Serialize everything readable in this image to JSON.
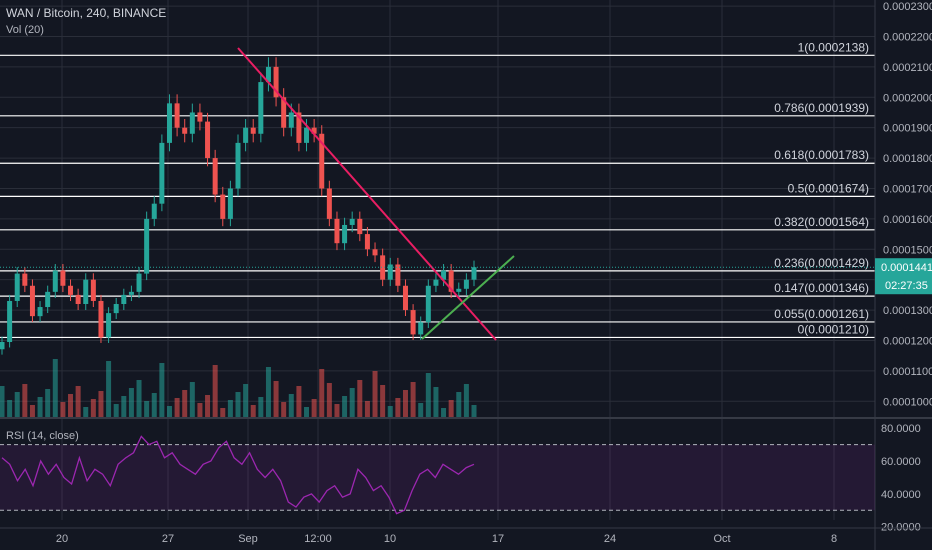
{
  "header": {
    "title": "WAN / Bitcoin, 240, BINANCE",
    "volume": "Vol (20)"
  },
  "rsi": {
    "label": "RSI (14, close)",
    "ticks": [
      "80.0000",
      "60.0000",
      "40.0000",
      "20.0000"
    ],
    "upper": 70,
    "lower": 30
  },
  "colors": {
    "bg": "#131722",
    "up": "#26a69a",
    "down": "#ef5350",
    "trend": "#e91e63",
    "support": "#4caf50",
    "fib": "#ffffff",
    "rsi": "#9c27b0",
    "last": "#26a69a"
  },
  "price_axis": {
    "ticks": [
      "0.0002300",
      "0.0002200",
      "0.0002100",
      "0.0002000",
      "0.0001900",
      "0.0001800",
      "0.0001700",
      "0.0001600",
      "0.0001500",
      "0.0001400",
      "0.0001300",
      "0.0001200",
      "0.0001100",
      "0.0001000"
    ]
  },
  "time_axis": {
    "labels": [
      "20",
      "27",
      "Sep",
      "12:00",
      "10",
      "17",
      "24",
      "Oct",
      "8"
    ]
  },
  "last_price": {
    "value": "0.0001441",
    "countdown": "02:27:35"
  },
  "chart_data": {
    "type": "candlestick",
    "symbol": "WAN / Bitcoin",
    "interval": "240",
    "exchange": "BINANCE",
    "y_range": [
      9.45e-05,
      0.000232
    ],
    "fib_levels": [
      {
        "label": "1(0.0002138)",
        "price": 0.0002138
      },
      {
        "label": "0.786(0.0001939)",
        "price": 0.0001939
      },
      {
        "label": "0.618(0.0001783)",
        "price": 0.0001783
      },
      {
        "label": "0.5(0.0001674)",
        "price": 0.0001674
      },
      {
        "label": "0.382(0.0001564)",
        "price": 0.0001564
      },
      {
        "label": "0.236(0.0001429)",
        "price": 0.0001429
      },
      {
        "label": "0.147(0.0001346)",
        "price": 0.0001346
      },
      {
        "label": "0.055(0.0001261)",
        "price": 0.0001261
      },
      {
        "label": "0(0.0001210)",
        "price": 0.000121
      }
    ],
    "trendlines": [
      {
        "name": "resistance",
        "from": [
          0.000214,
          0
        ],
        "to": [
          0.00012,
          1
        ]
      },
      {
        "name": "support",
        "from": [
          0.000121,
          0
        ],
        "to": [
          0.00015,
          1
        ]
      }
    ],
    "price_series": [
      0.0001195,
      0.000133,
      0.000142,
      0.000138,
      0.000128,
      0.000131,
      0.000136,
      0.000143,
      0.000138,
      0.000135,
      0.000132,
      0.00014,
      0.000133,
      0.000121,
      0.000129,
      0.000132,
      0.000135,
      0.000136,
      0.000142,
      0.00016,
      0.000165,
      0.000185,
      0.000198,
      0.00019,
      0.000188,
      0.000195,
      0.000192,
      0.00018,
      0.000168,
      0.00016,
      0.00017,
      0.000185,
      0.00019,
      0.000188,
      0.000205,
      0.00021,
      0.0002,
      0.00019,
      0.000195,
      0.000185,
      0.00019,
      0.000188,
      0.00017,
      0.00016,
      0.000152,
      0.000158,
      0.00016,
      0.000155,
      0.00015,
      0.000148,
      0.00014,
      0.000145,
      0.000138,
      0.00013,
      0.000122,
      0.000126,
      0.000138,
      0.00014,
      0.000143,
      0.000136,
      0.000137,
      0.00014,
      0.0001441
    ],
    "rsi_series": [
      62,
      58,
      48,
      55,
      45,
      60,
      52,
      58,
      50,
      46,
      62,
      48,
      55,
      52,
      45,
      58,
      62,
      65,
      75,
      70,
      72,
      62,
      65,
      58,
      55,
      52,
      58,
      60,
      68,
      72,
      62,
      58,
      65,
      55,
      50,
      55,
      48,
      35,
      32,
      38,
      40,
      35,
      42,
      45,
      38,
      40,
      55,
      50,
      42,
      45,
      38,
      28,
      30,
      42,
      52,
      55,
      50,
      58,
      55,
      52,
      56,
      58
    ]
  }
}
